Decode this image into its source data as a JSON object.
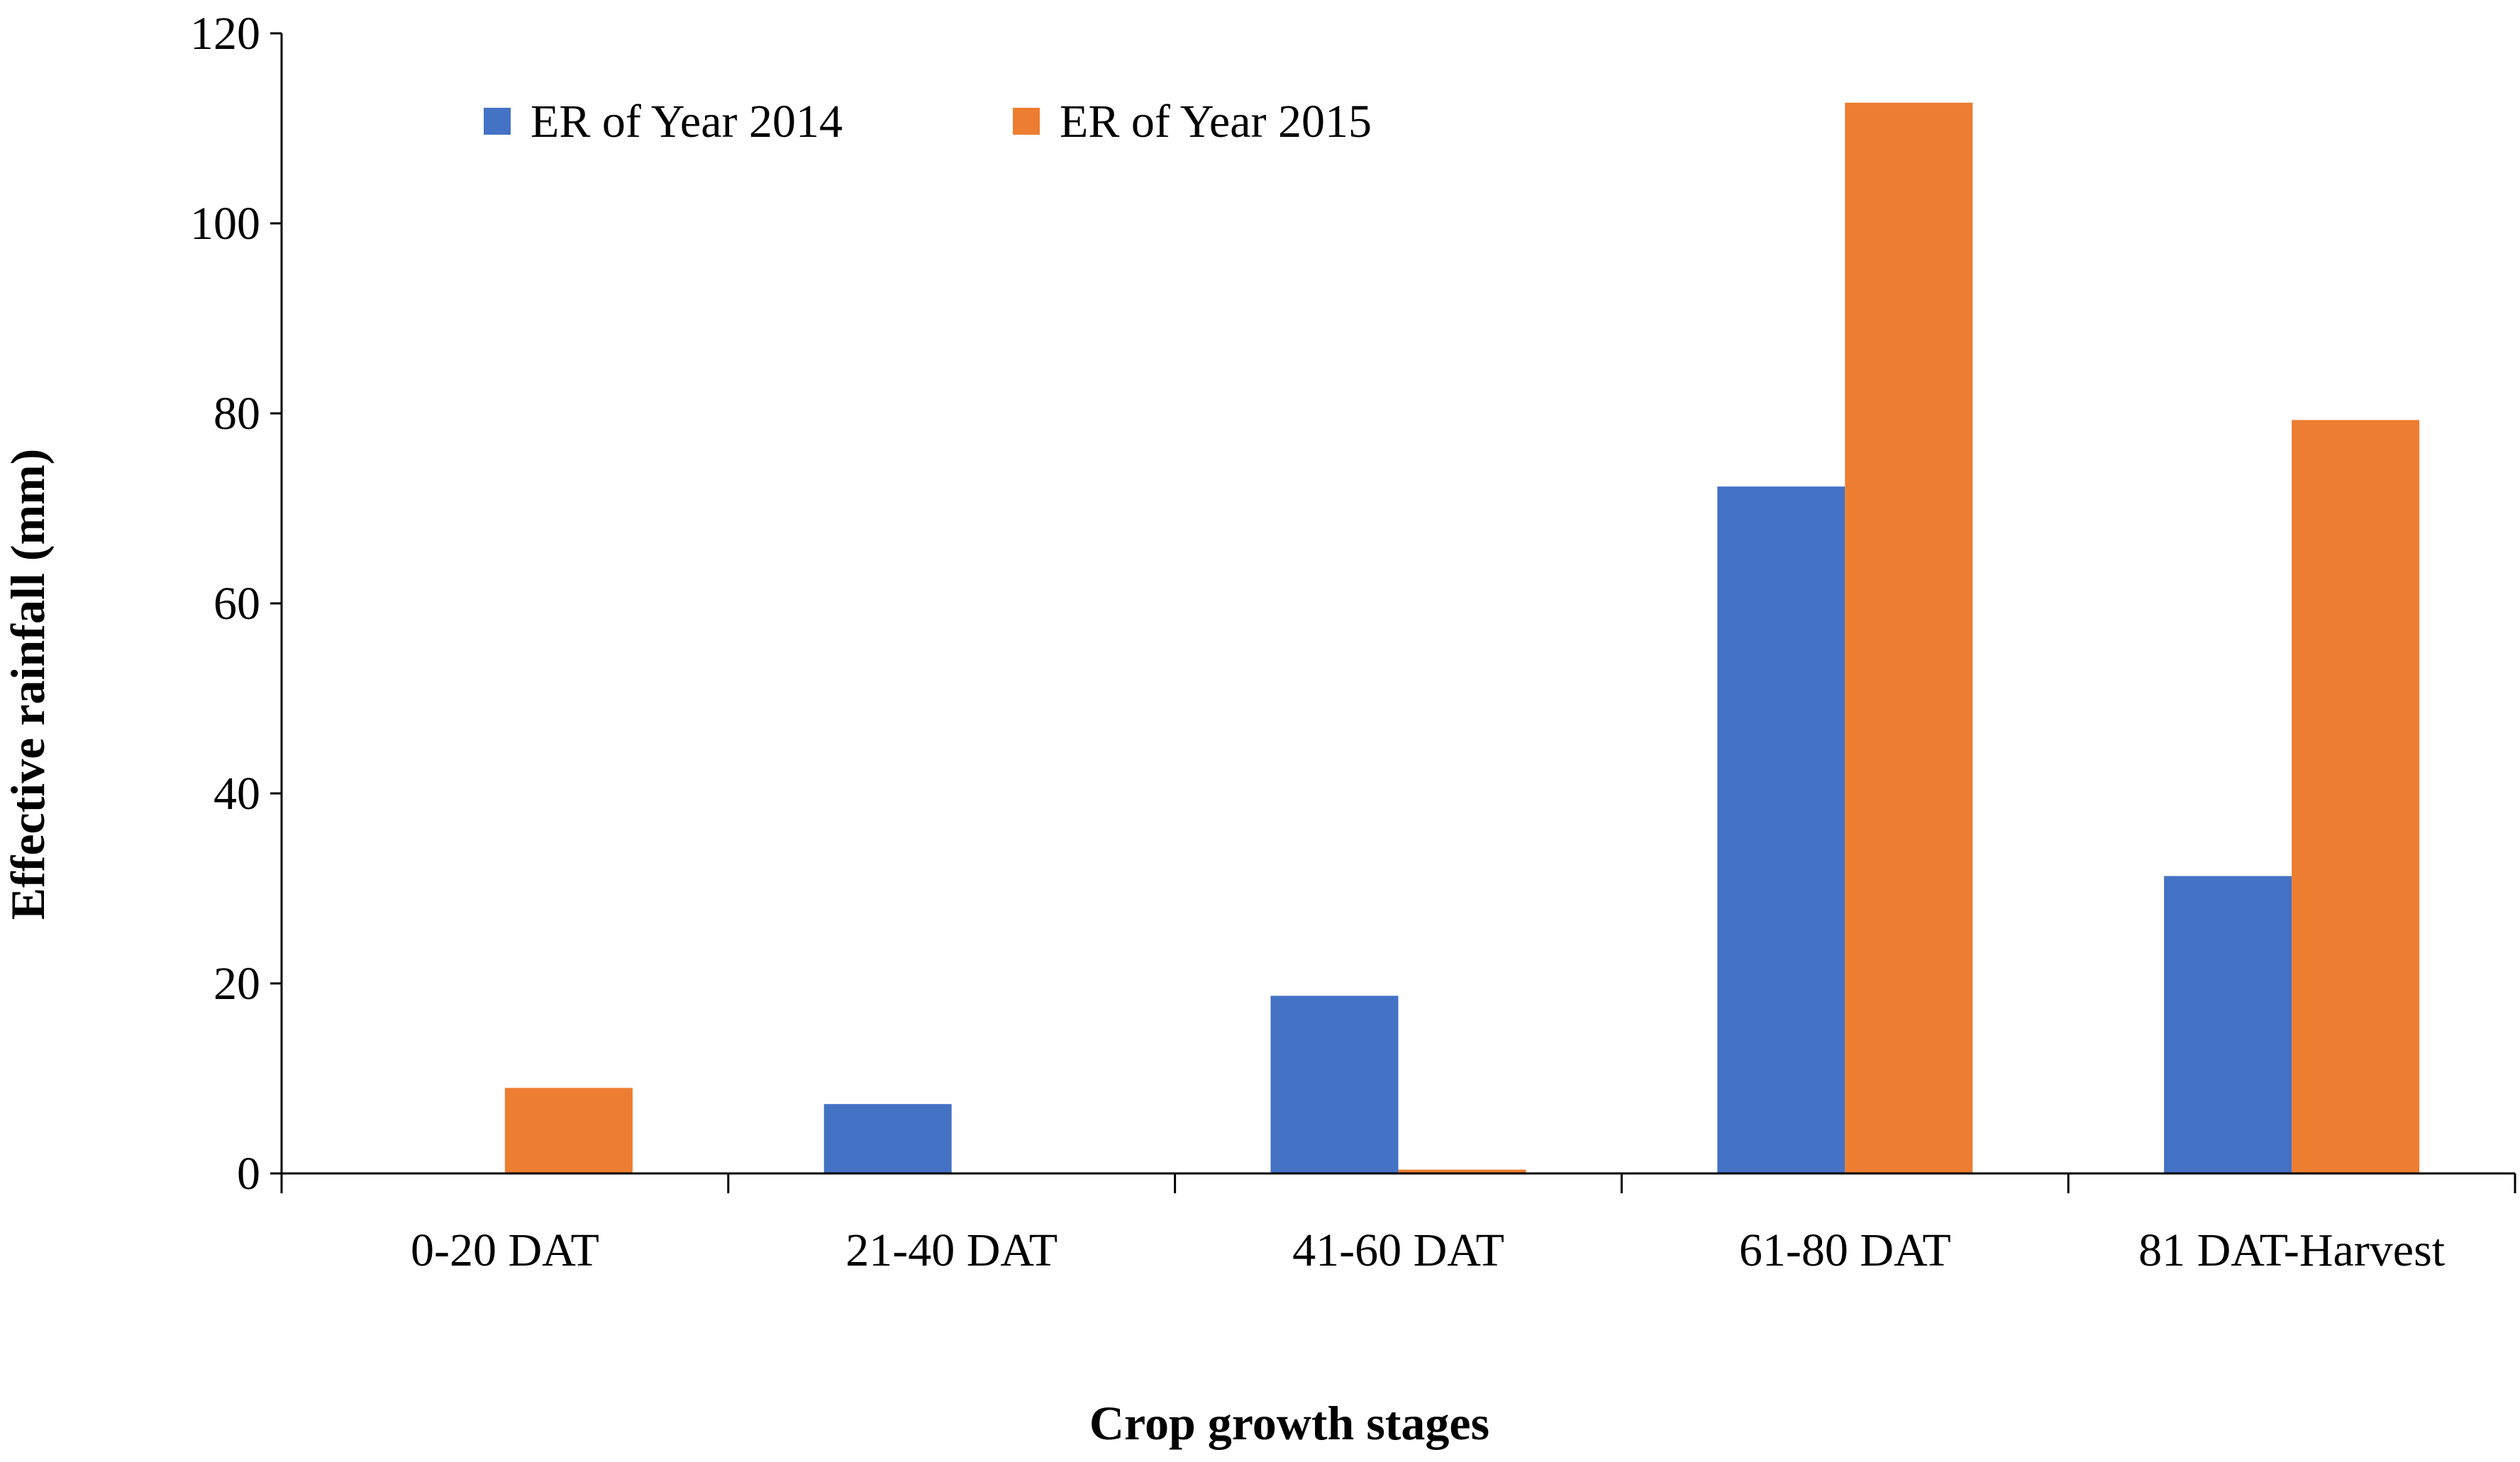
{
  "chart_data": {
    "type": "bar",
    "title": "",
    "xlabel": "Crop growth stages",
    "ylabel": "Effective rainfall (mm)",
    "ylim": [
      0,
      120
    ],
    "yticks": [
      0,
      20,
      40,
      60,
      80,
      100,
      120
    ],
    "grid": false,
    "legend_position": "top",
    "categories": [
      "0-20 DAT",
      "21-40 DAT",
      "41-60 DAT",
      "61-80 DAT",
      "81 DAT-Harvest"
    ],
    "series": [
      {
        "name": "ER of Year 2014",
        "color": "#4472C4",
        "values": [
          0,
          7.3,
          18.7,
          72.3,
          31.3
        ]
      },
      {
        "name": "ER of Year 2015",
        "color": "#ED7D31",
        "values": [
          9.0,
          0,
          0.4,
          112.7,
          79.3
        ]
      }
    ]
  }
}
